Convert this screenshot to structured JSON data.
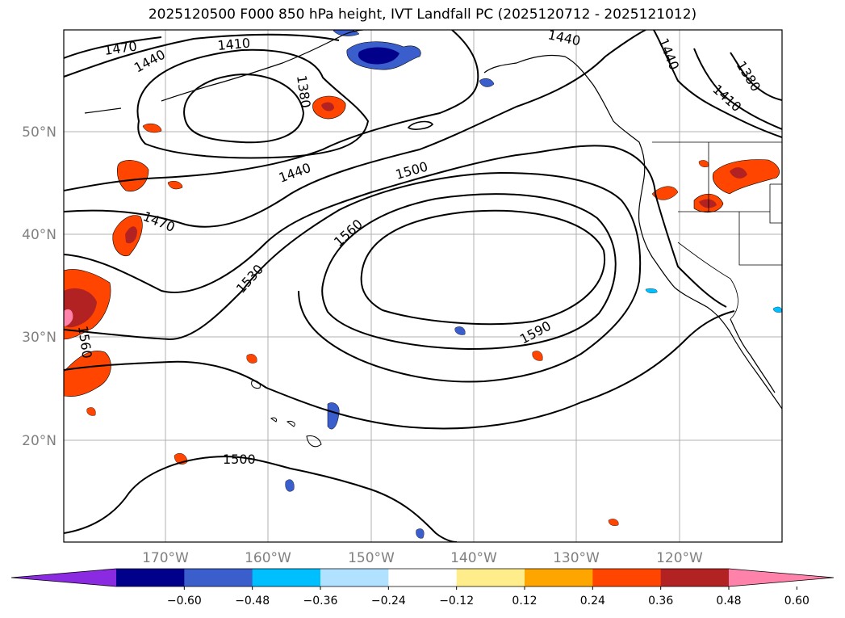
{
  "title": "2025120500 F000 850 hPa height, IVT Landfall PC (2025120712 - 2025121012)",
  "map": {
    "lon_labels": [
      "170°W",
      "160°W",
      "150°W",
      "140°W",
      "130°W",
      "120°W"
    ],
    "lat_labels": [
      "50°N",
      "40°N",
      "30°N",
      "20°N"
    ],
    "contour_labels": [
      "1470",
      "1440",
      "1410",
      "1380",
      "1440",
      "1380",
      "1410",
      "1440",
      "1440",
      "1500",
      "1470",
      "1560",
      "1530",
      "1590",
      "1560",
      "1500"
    ]
  },
  "colorbar": {
    "colors": [
      "#8a2be2",
      "#00008b",
      "#3a5fcd",
      "#00bfff",
      "#b0e2ff",
      "#ffffff",
      "#ffec8b",
      "#ffa500",
      "#ff4500",
      "#b22222",
      "#ff82ab"
    ],
    "ticks": [
      "−0.60",
      "−0.48",
      "−0.36",
      "−0.24",
      "−0.12",
      "0.12",
      "0.24",
      "0.36",
      "0.48",
      "0.60"
    ]
  }
}
